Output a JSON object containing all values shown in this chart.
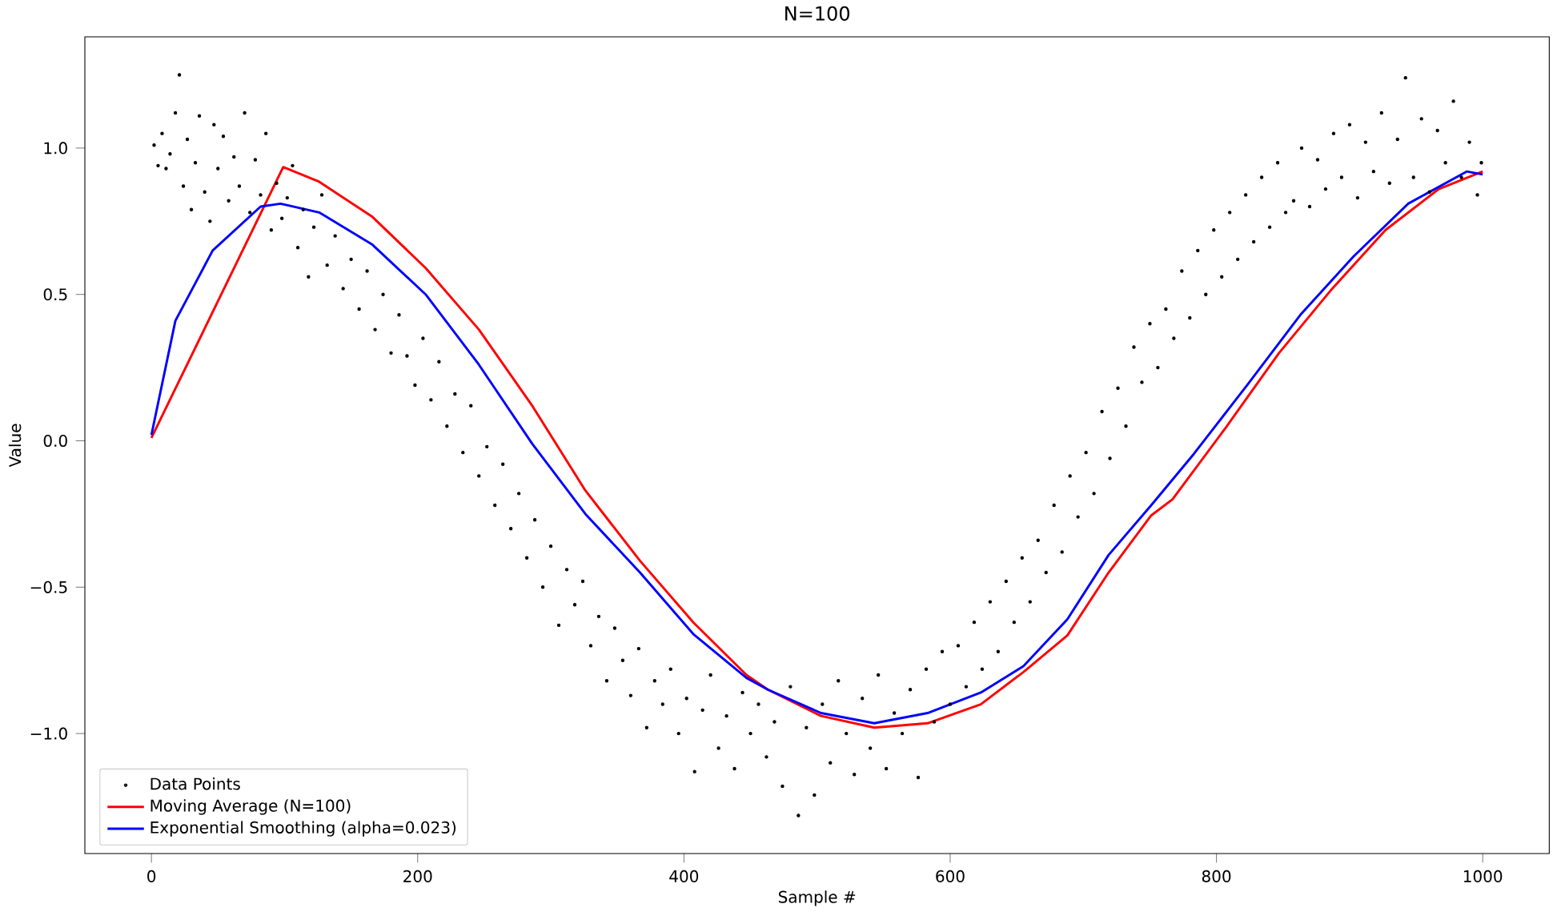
{
  "chart_data": {
    "type": "line",
    "title": "N=100",
    "xlabel": "Sample #",
    "ylabel": "Value",
    "xlim": [
      -50,
      1050
    ],
    "ylim": [
      -1.41,
      1.38
    ],
    "xticks": [
      0,
      200,
      400,
      600,
      800,
      1000
    ],
    "yticks": [
      {
        "value": -1.0,
        "label": "−1.0"
      },
      {
        "value": -0.5,
        "label": "−0.5"
      },
      {
        "value": 0.0,
        "label": "0.0"
      },
      {
        "value": 0.5,
        "label": "0.5"
      },
      {
        "value": 1.0,
        "label": "1.0"
      }
    ],
    "grid": false,
    "legend": "bottom left",
    "series": [
      {
        "name": "Data Points",
        "type": "scatter",
        "color": "#000000",
        "x": [
          2,
          5,
          8,
          11,
          14,
          18,
          21,
          24,
          27,
          30,
          33,
          36,
          40,
          44,
          47,
          50,
          54,
          58,
          62,
          66,
          70,
          74,
          78,
          82,
          86,
          90,
          94,
          98,
          102,
          106,
          110,
          114,
          118,
          122,
          128,
          132,
          138,
          144,
          150,
          156,
          162,
          168,
          174,
          180,
          186,
          192,
          198,
          204,
          210,
          216,
          222,
          228,
          234,
          240,
          246,
          252,
          258,
          264,
          270,
          276,
          282,
          288,
          294,
          300,
          306,
          312,
          318,
          324,
          330,
          336,
          342,
          348,
          354,
          360,
          366,
          372,
          378,
          384,
          390,
          396,
          402,
          408,
          414,
          420,
          426,
          432,
          438,
          444,
          450,
          456,
          462,
          468,
          474,
          480,
          486,
          492,
          498,
          504,
          510,
          516,
          522,
          528,
          534,
          540,
          546,
          552,
          558,
          564,
          570,
          576,
          582,
          588,
          594,
          600,
          606,
          612,
          618,
          624,
          630,
          636,
          642,
          648,
          654,
          660,
          666,
          672,
          678,
          684,
          690,
          696,
          702,
          708,
          714,
          720,
          726,
          732,
          738,
          744,
          750,
          756,
          762,
          768,
          774,
          780,
          786,
          792,
          798,
          804,
          810,
          816,
          822,
          828,
          834,
          840,
          846,
          852,
          858,
          864,
          870,
          876,
          882,
          888,
          894,
          900,
          906,
          912,
          918,
          924,
          930,
          936,
          942,
          948,
          954,
          960,
          966,
          972,
          978,
          984,
          990,
          996,
          999
        ],
        "values": [
          1.01,
          0.94,
          1.05,
          0.93,
          0.98,
          1.12,
          1.25,
          0.87,
          1.03,
          0.79,
          0.95,
          1.11,
          0.85,
          0.75,
          1.08,
          0.93,
          1.04,
          0.82,
          0.97,
          0.87,
          1.12,
          0.78,
          0.96,
          0.84,
          1.05,
          0.72,
          0.88,
          0.76,
          0.83,
          0.94,
          0.66,
          0.79,
          0.56,
          0.73,
          0.84,
          0.6,
          0.7,
          0.52,
          0.62,
          0.45,
          0.58,
          0.38,
          0.5,
          0.3,
          0.43,
          0.29,
          0.19,
          0.35,
          0.14,
          0.27,
          0.05,
          0.16,
          -0.04,
          0.12,
          -0.12,
          -0.02,
          -0.22,
          -0.08,
          -0.3,
          -0.18,
          -0.4,
          -0.27,
          -0.5,
          -0.36,
          -0.63,
          -0.44,
          -0.56,
          -0.48,
          -0.7,
          -0.6,
          -0.82,
          -0.64,
          -0.75,
          -0.87,
          -0.71,
          -0.98,
          -0.82,
          -0.9,
          -0.78,
          -1.0,
          -0.88,
          -1.13,
          -0.92,
          -0.8,
          -1.05,
          -0.94,
          -1.12,
          -0.86,
          -1.0,
          -0.9,
          -1.08,
          -0.96,
          -1.18,
          -0.84,
          -1.28,
          -0.98,
          -1.21,
          -0.9,
          -1.1,
          -0.82,
          -1.0,
          -1.14,
          -0.88,
          -1.05,
          -0.8,
          -1.12,
          -0.93,
          -1.0,
          -0.85,
          -1.15,
          -0.78,
          -0.96,
          -0.72,
          -0.9,
          -0.7,
          -0.84,
          -0.62,
          -0.78,
          -0.55,
          -0.72,
          -0.48,
          -0.62,
          -0.4,
          -0.55,
          -0.34,
          -0.45,
          -0.22,
          -0.38,
          -0.12,
          -0.26,
          -0.04,
          -0.18,
          0.1,
          -0.06,
          0.18,
          0.05,
          0.32,
          0.2,
          0.4,
          0.25,
          0.45,
          0.35,
          0.58,
          0.42,
          0.65,
          0.5,
          0.72,
          0.56,
          0.78,
          0.62,
          0.84,
          0.68,
          0.9,
          0.73,
          0.95,
          0.78,
          0.82,
          1.0,
          0.8,
          0.96,
          0.86,
          1.05,
          0.9,
          1.08,
          0.83,
          1.02,
          0.92,
          1.12,
          0.88,
          1.03,
          1.24,
          0.9,
          1.1,
          0.85,
          1.06,
          0.95,
          1.16,
          0.9,
          1.02,
          0.84,
          0.95
        ]
      },
      {
        "name": "Moving Average (N=100)",
        "color": "#ff0000",
        "x": [
          0,
          99,
          126,
          166,
          206,
          246,
          286,
          326,
          367,
          407,
          447,
          463,
          503,
          543,
          583,
          623,
          655,
          688,
          719,
          751,
          767,
          807,
          847,
          887,
          927,
          967,
          1000
        ],
        "values": [
          0.01,
          0.935,
          0.885,
          0.765,
          0.59,
          0.38,
          0.12,
          -0.17,
          -0.41,
          -0.62,
          -0.8,
          -0.85,
          -0.94,
          -0.98,
          -0.965,
          -0.9,
          -0.79,
          -0.665,
          -0.45,
          -0.255,
          -0.2,
          0.045,
          0.3,
          0.52,
          0.72,
          0.86,
          0.92
        ]
      },
      {
        "name": "Exponential Smoothing (alpha=0.023)",
        "color": "#0000ff",
        "x": [
          0,
          18,
          46,
          82,
          97,
          126,
          166,
          206,
          246,
          286,
          326,
          367,
          407,
          447,
          463,
          503,
          543,
          583,
          623,
          655,
          688,
          719,
          751,
          783,
          823,
          863,
          903,
          944,
          988,
          1000
        ],
        "values": [
          0.02,
          0.41,
          0.65,
          0.8,
          0.81,
          0.78,
          0.67,
          0.5,
          0.26,
          -0.01,
          -0.25,
          -0.45,
          -0.66,
          -0.81,
          -0.85,
          -0.93,
          -0.965,
          -0.93,
          -0.86,
          -0.77,
          -0.61,
          -0.39,
          -0.22,
          -0.045,
          0.19,
          0.43,
          0.63,
          0.81,
          0.92,
          0.91
        ]
      }
    ]
  }
}
